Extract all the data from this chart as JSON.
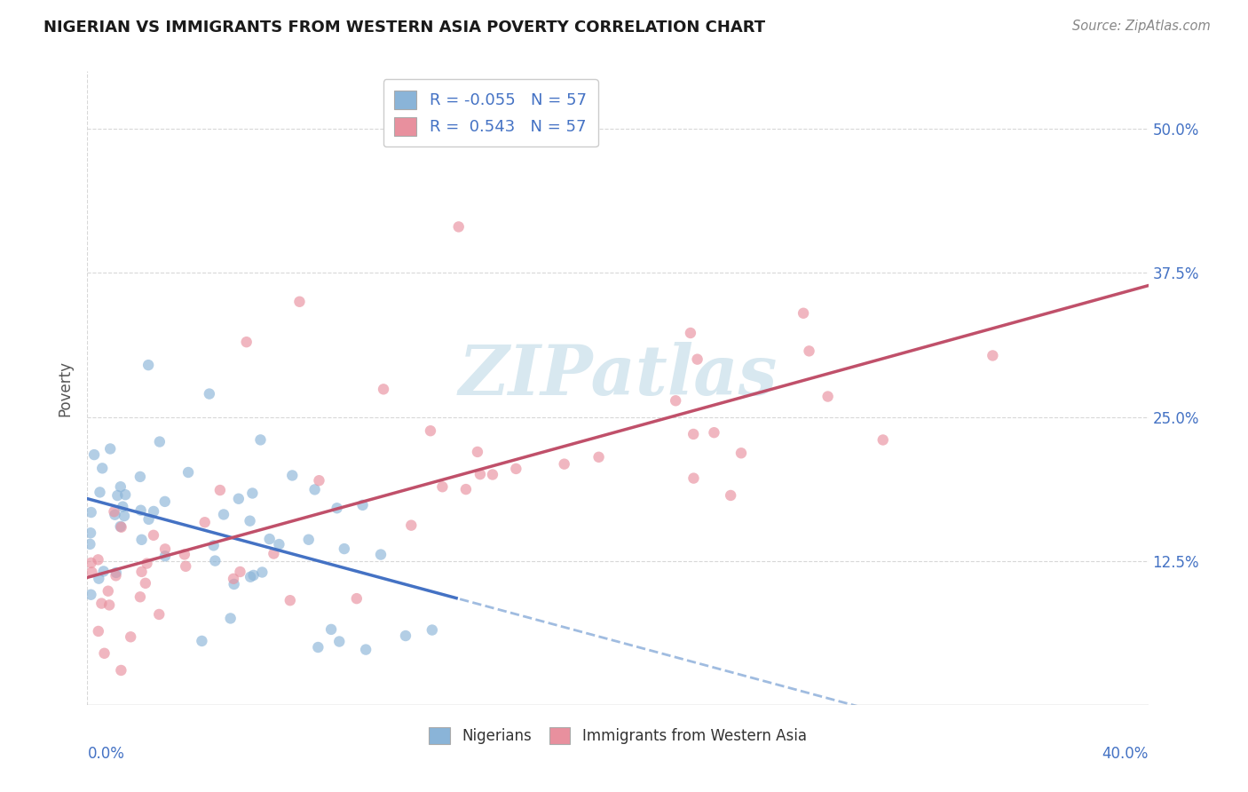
{
  "title": "NIGERIAN VS IMMIGRANTS FROM WESTERN ASIA POVERTY CORRELATION CHART",
  "source": "Source: ZipAtlas.com",
  "ylabel": "Poverty",
  "right_yticks": [
    0.125,
    0.25,
    0.375,
    0.5
  ],
  "right_ytick_labels": [
    "12.5%",
    "25.0%",
    "37.5%",
    "50.0%"
  ],
  "legend_bottom_labels": [
    "Nigerians",
    "Immigrants from Western Asia"
  ],
  "blue_scatter_color": "#8ab4d8",
  "pink_scatter_color": "#e8909e",
  "blue_line_color": "#4472c4",
  "pink_line_color": "#c0506a",
  "blue_dash_color": "#a0bce0",
  "watermark_color": "#d8e8f0",
  "xlim": [
    0.0,
    0.4
  ],
  "ylim": [
    0.0,
    0.55
  ],
  "background_color": "#ffffff",
  "grid_color": "#d8d8d8",
  "nig_r": -0.055,
  "imm_r": 0.543,
  "n": 57
}
